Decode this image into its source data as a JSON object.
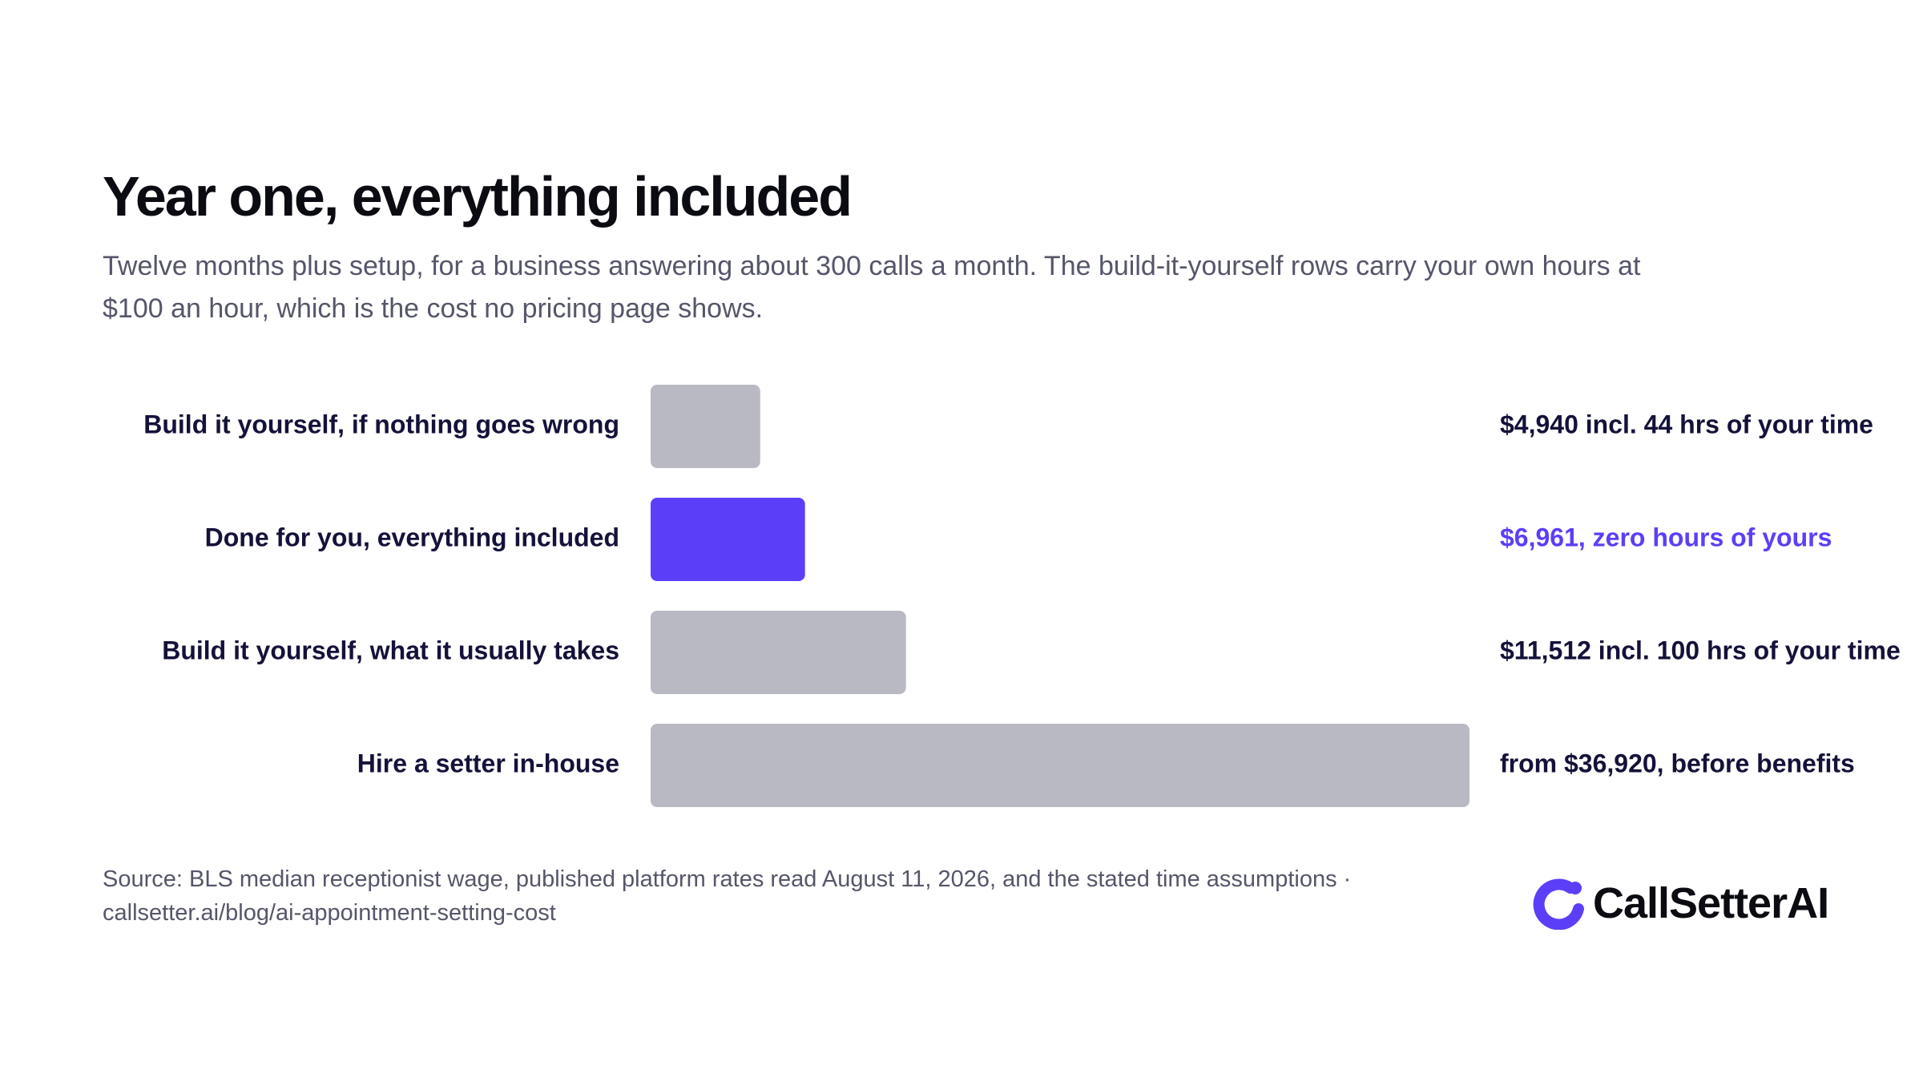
{
  "header": {
    "title": "Year one, everything included",
    "subtitle": "Twelve months plus setup, for a business answering about 300 calls a month. The build-it-yourself rows carry your own hours at $100 an hour, which is the cost no pricing page shows."
  },
  "chart_data": {
    "type": "bar",
    "orientation": "horizontal",
    "categories": [
      "Build it yourself, if nothing goes wrong",
      "Done for you, everything included",
      "Build it yourself, what it usually takes",
      "Hire a setter in-house"
    ],
    "values": [
      4940,
      6961,
      11512,
      36920
    ],
    "value_labels": [
      "$4,940 incl. 44 hrs of your time",
      "$6,961, zero hours of yours",
      "$11,512 incl. 100 hrs of your time",
      "from $36,920, before benefits"
    ],
    "highlight_index": 1,
    "colors": {
      "default_bar": "#b9b9c4",
      "highlight_bar": "#5b3ff8",
      "label_text": "#14123a",
      "highlight_text": "#5b3ff8"
    },
    "xlim": [
      0,
      36920
    ],
    "grid": false,
    "legend": "none"
  },
  "footer": {
    "source": "Source: BLS median receptionist wage, published platform rates read August 11, 2026, and the stated time assumptions · callsetter.ai/blog/ai-appointment-setting-cost"
  },
  "logo": {
    "text": "CallSetterAI",
    "icon": "callsetter-logo-icon",
    "color": "#5b3ff8"
  }
}
